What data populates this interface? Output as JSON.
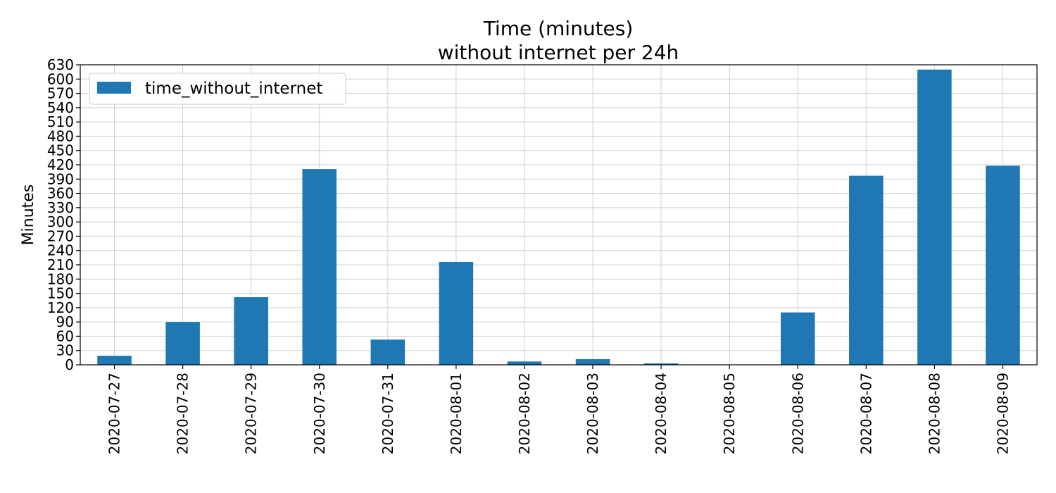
{
  "chart_data": {
    "type": "bar",
    "title": "Time (minutes)",
    "subtitle": "without internet per 24h",
    "xlabel": "",
    "ylabel": "Minutes",
    "categories": [
      "2020-07-27",
      "2020-07-28",
      "2020-07-29",
      "2020-07-30",
      "2020-07-31",
      "2020-08-01",
      "2020-08-02",
      "2020-08-03",
      "2020-08-04",
      "2020-08-05",
      "2020-08-06",
      "2020-08-07",
      "2020-08-08",
      "2020-08-09"
    ],
    "series": [
      {
        "name": "time_without_internet",
        "color": "#1f77b4",
        "values": [
          19,
          90,
          142,
          411,
          53,
          216,
          7,
          12,
          3,
          0,
          110,
          397,
          620,
          418
        ]
      }
    ],
    "ylim": [
      0,
      630
    ],
    "yticks": [
      0,
      30,
      60,
      90,
      120,
      150,
      180,
      210,
      240,
      270,
      300,
      330,
      360,
      390,
      420,
      450,
      480,
      510,
      540,
      570,
      600,
      630
    ],
    "grid": true,
    "legend_position": "top-left"
  }
}
